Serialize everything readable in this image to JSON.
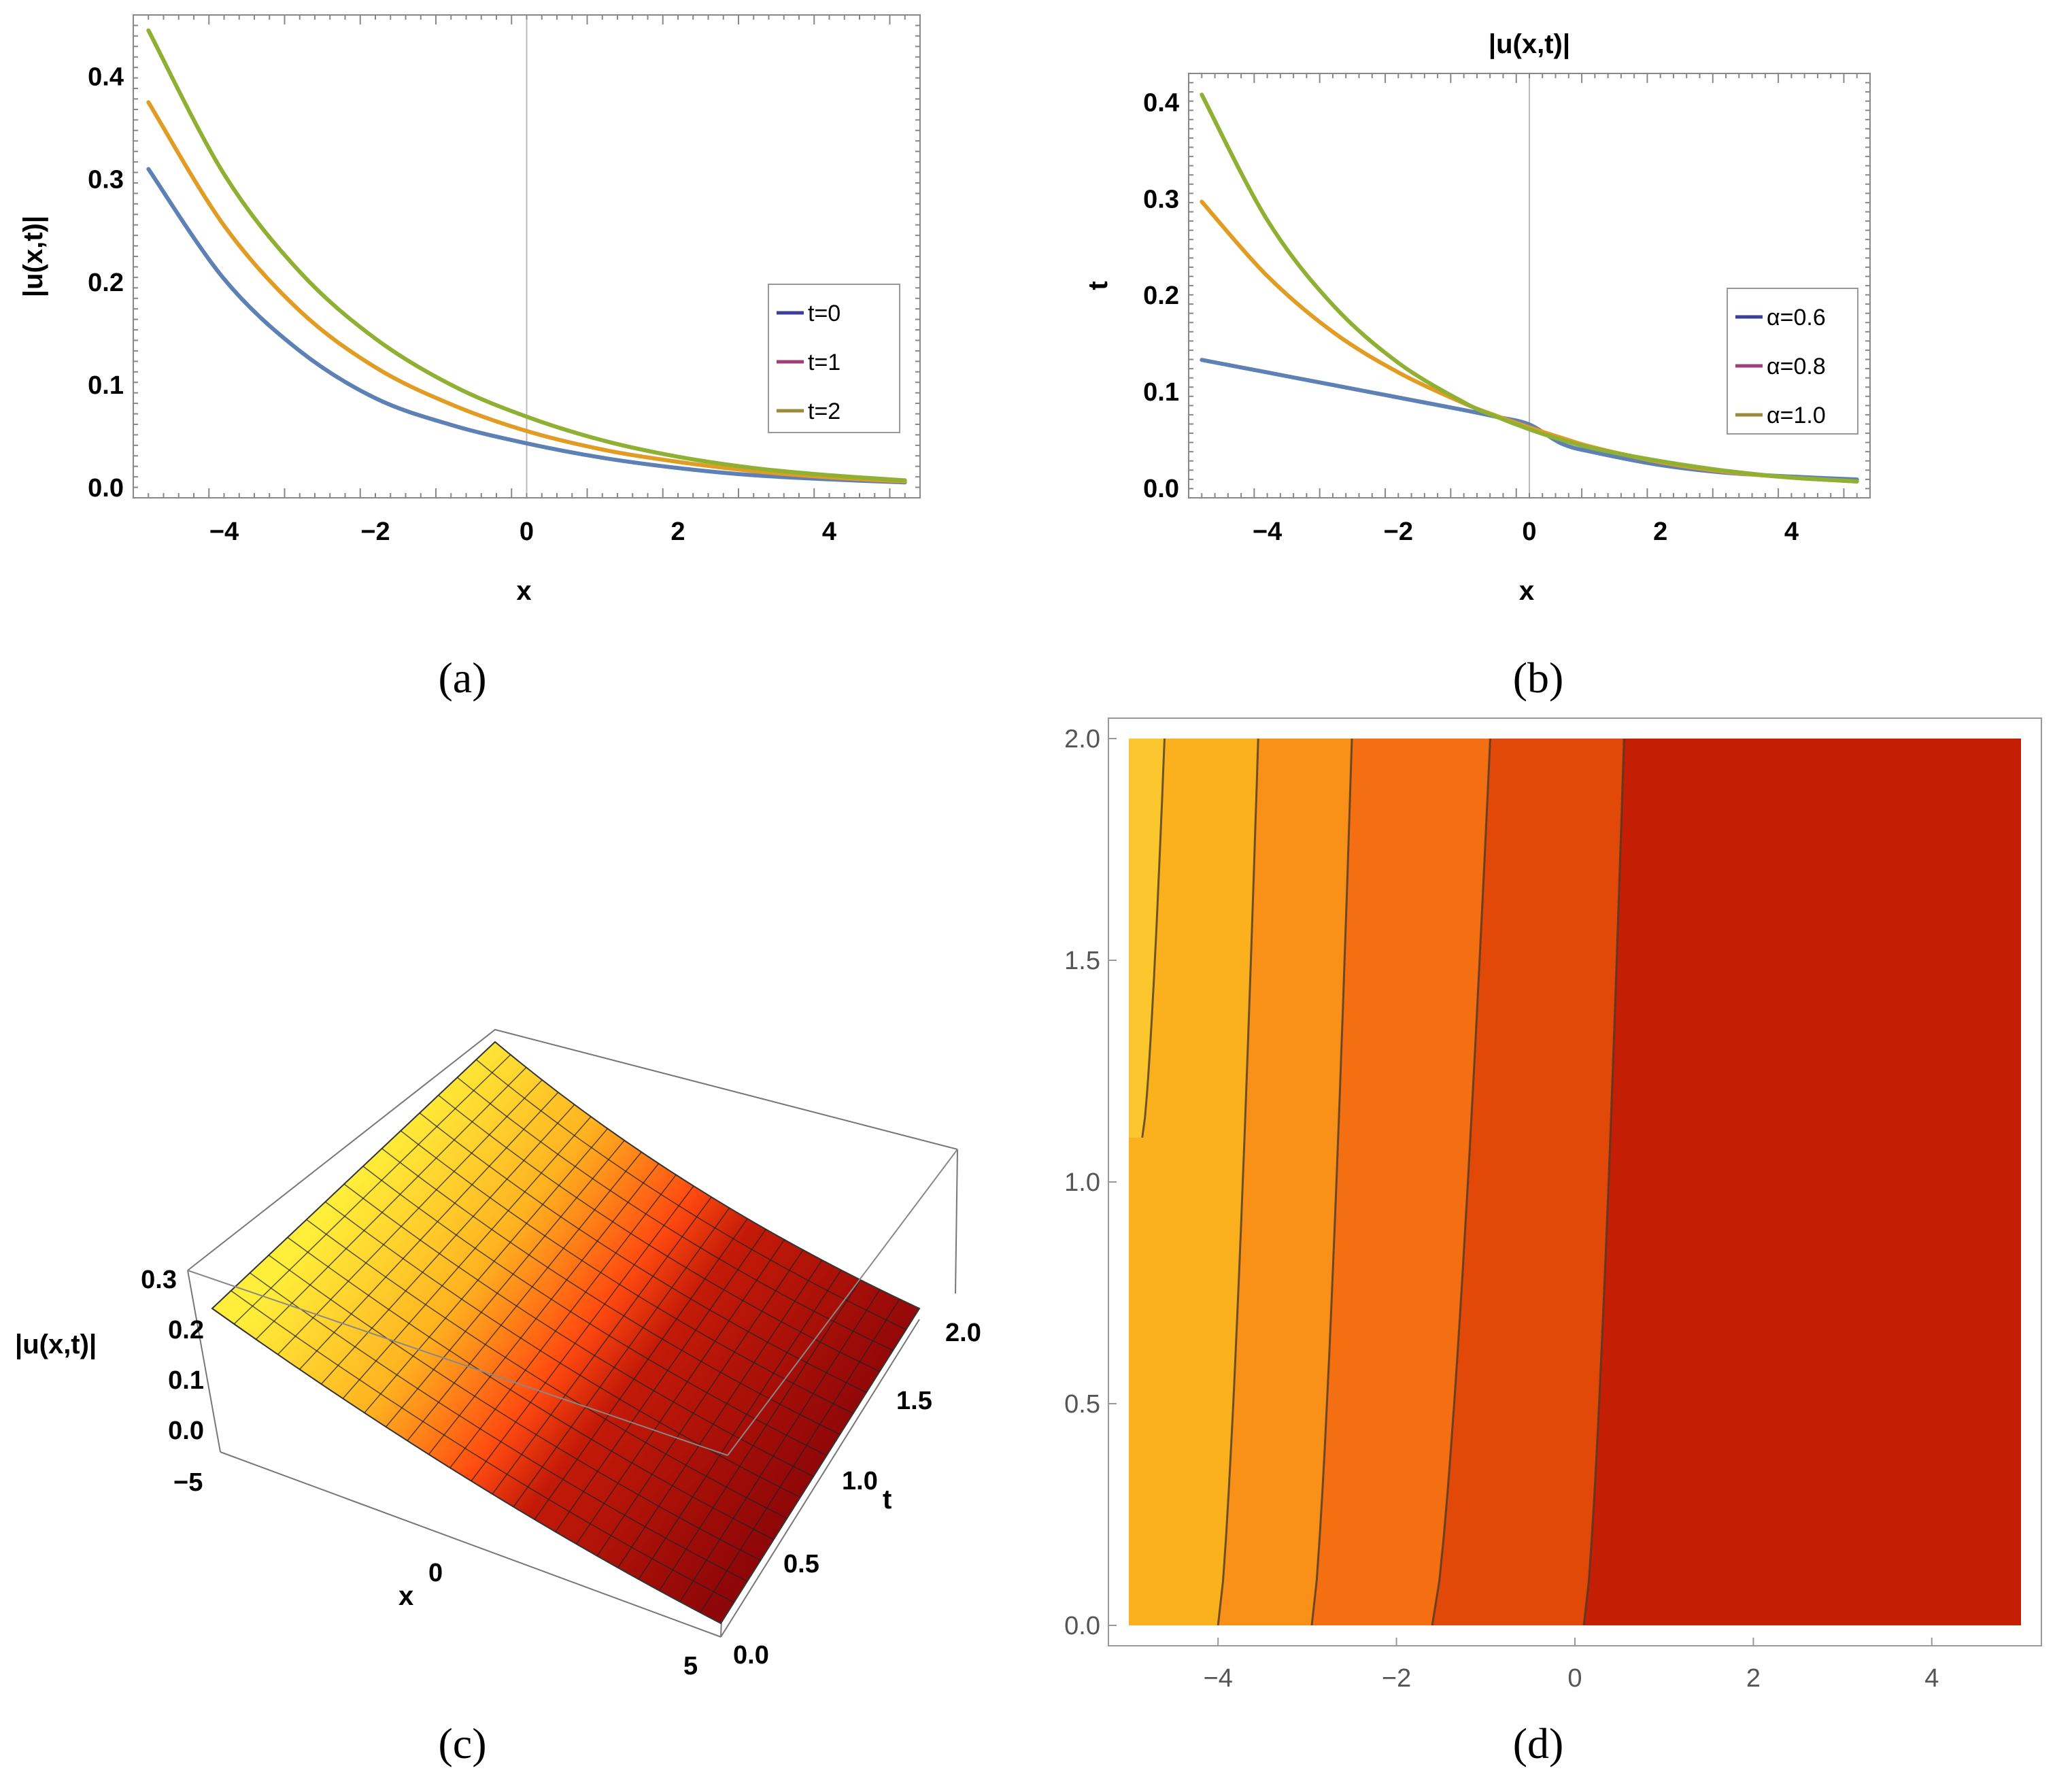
{
  "colors": {
    "blue": "#5e81b5",
    "orange": "#e19c24",
    "green": "#8fb032",
    "legend_blue": "#3d3d9e",
    "legend_purple": "#9e3d7a",
    "legend_olive": "#9e8a3d",
    "contour_line": "#4a3a2a"
  },
  "panels": {
    "a": {
      "caption": "(a)"
    },
    "b": {
      "caption": "(b)"
    },
    "c": {
      "caption": "(c)"
    },
    "d": {
      "caption": "(d)"
    }
  },
  "chart_data": [
    {
      "id": "a",
      "type": "line",
      "title": "",
      "xlabel": "x",
      "ylabel": "|u(x,t)|",
      "xlim": [
        -5.2,
        5.2
      ],
      "ylim": [
        -0.01,
        0.46
      ],
      "xticks": [
        -4,
        -2,
        0,
        2,
        4
      ],
      "xtick_labels": [
        "−4",
        "−2",
        "0",
        "2",
        "4"
      ],
      "yticks": [
        0.0,
        0.1,
        0.2,
        0.3,
        0.4
      ],
      "ytick_labels": [
        "0.0",
        "0.1",
        "0.2",
        "0.3",
        "0.4"
      ],
      "legend_position": "right",
      "x": [
        -5,
        -4,
        -3,
        -2,
        -1,
        0,
        1,
        2,
        3,
        4,
        5
      ],
      "series": [
        {
          "name": "t=0",
          "color_key": "blue",
          "legend_color_key": "legend_blue",
          "values": [
            0.31,
            0.203,
            0.133,
            0.087,
            0.061,
            0.043,
            0.029,
            0.019,
            0.012,
            0.008,
            0.005
          ]
        },
        {
          "name": "t=1",
          "color_key": "orange",
          "legend_color_key": "legend_purple",
          "values": [
            0.375,
            0.255,
            0.172,
            0.117,
            0.081,
            0.055,
            0.037,
            0.025,
            0.016,
            0.01,
            0.006
          ]
        },
        {
          "name": "t=2",
          "color_key": "green",
          "legend_color_key": "legend_olive",
          "values": [
            0.445,
            0.305,
            0.21,
            0.145,
            0.1,
            0.069,
            0.046,
            0.03,
            0.019,
            0.012,
            0.007
          ]
        }
      ]
    },
    {
      "id": "b",
      "type": "line",
      "title": "|u(x,t)|",
      "xlabel": "x",
      "ylabel": "t",
      "xlim": [
        -5.2,
        5.2
      ],
      "ylim": [
        -0.01,
        0.43
      ],
      "xticks": [
        -4,
        -2,
        0,
        2,
        4
      ],
      "xtick_labels": [
        "−4",
        "−2",
        "0",
        "2",
        "4"
      ],
      "yticks": [
        0.0,
        0.1,
        0.2,
        0.3,
        0.4
      ],
      "ytick_labels": [
        "0.0",
        "0.1",
        "0.2",
        "0.3",
        "0.4"
      ],
      "legend_position": "right",
      "x": [
        -5,
        -4,
        -3,
        -2,
        -1,
        -0.5,
        0,
        0.5,
        1,
        2,
        3,
        4,
        5
      ],
      "series": [
        {
          "name": "α=0.6",
          "color_key": "blue",
          "legend_color_key": "legend_blue",
          "values": [
            0.133,
            0.12,
            0.107,
            0.094,
            0.081,
            0.074,
            0.066,
            0.046,
            0.037,
            0.024,
            0.016,
            0.012,
            0.009
          ]
        },
        {
          "name": "α=0.8",
          "color_key": "orange",
          "legend_color_key": "legend_purple",
          "values": [
            0.297,
            0.22,
            0.162,
            0.12,
            0.088,
            0.075,
            0.063,
            0.052,
            0.042,
            0.027,
            0.017,
            0.011,
            0.007
          ]
        },
        {
          "name": "α=1.0",
          "color_key": "green",
          "legend_color_key": "legend_olive",
          "values": [
            0.408,
            0.278,
            0.19,
            0.13,
            0.089,
            0.074,
            0.061,
            0.05,
            0.041,
            0.028,
            0.018,
            0.011,
            0.007
          ]
        }
      ]
    },
    {
      "id": "c",
      "type": "surface",
      "xlabel": "x",
      "ylabel": "t",
      "zlabel": "|u(x,t)|",
      "xticks": [
        "−5",
        "0",
        "5"
      ],
      "yticks": [
        "0.0",
        "0.5",
        "1.0",
        "1.5",
        "2.0"
      ],
      "zticks": [
        "0.0",
        "0.1",
        "0.2",
        "0.3"
      ],
      "x_range": [
        -5,
        5
      ],
      "t_range": [
        0,
        2
      ],
      "z_range": [
        0,
        0.3
      ]
    },
    {
      "id": "d",
      "type": "heatmap",
      "xlim": [
        -5,
        5
      ],
      "ylim": [
        0,
        2
      ],
      "xticks": [
        -4,
        -2,
        0,
        2,
        4
      ],
      "xtick_labels": [
        "−4",
        "−2",
        "0",
        "2",
        "4"
      ],
      "yticks": [
        0.0,
        0.5,
        1.0,
        1.5,
        2.0
      ],
      "ytick_labels": [
        "0.0",
        "0.5",
        "1.0",
        "1.5",
        "2.0"
      ],
      "band_colors": [
        "#fcc72e",
        "#fbb11d",
        "#f99118",
        "#f46e12",
        "#e24808",
        "#c41e04",
        "#7a0004"
      ],
      "contours": [
        {
          "bottom": -4.85,
          "top": -4.6,
          "start_t": 1.1
        },
        {
          "bottom": -4.0,
          "top": -3.55
        },
        {
          "bottom": -2.95,
          "top": -2.5
        },
        {
          "bottom": -1.6,
          "top": -0.95
        },
        {
          "bottom": 0.1,
          "top": 0.55
        }
      ]
    }
  ]
}
